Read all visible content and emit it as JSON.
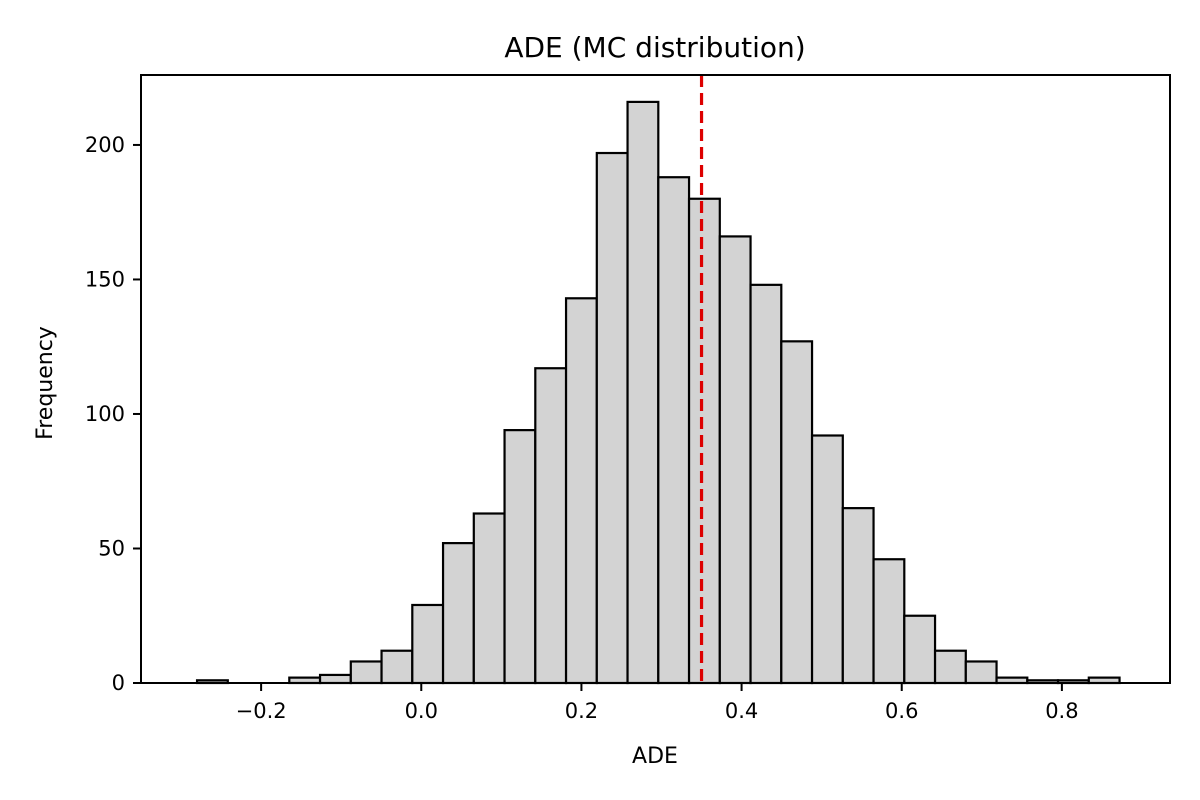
{
  "chart_data": {
    "type": "bar",
    "title": "ADE (MC distribution)",
    "xlabel": "ADE",
    "ylabel": "Frequency",
    "xlim": [
      -0.35,
      0.935
    ],
    "ylim": [
      0,
      226
    ],
    "xticks": [
      "−0.2",
      "0.0",
      "0.2",
      "0.4",
      "0.6",
      "0.8"
    ],
    "xtick_values": [
      -0.2,
      0.0,
      0.2,
      0.4,
      0.6,
      0.8
    ],
    "yticks": [
      "0",
      "50",
      "100",
      "150",
      "200"
    ],
    "ytick_values": [
      0,
      50,
      100,
      150,
      200
    ],
    "bin_start": -0.28,
    "bin_width": 0.0384,
    "counts": [
      1,
      0,
      0,
      2,
      3,
      8,
      12,
      29,
      52,
      63,
      94,
      117,
      143,
      197,
      216,
      188,
      180,
      166,
      148,
      127,
      92,
      65,
      46,
      25,
      12,
      8,
      2,
      1,
      1,
      2
    ],
    "reference_line": {
      "x": 0.35,
      "color": "#dd0000",
      "style": "dashed"
    },
    "bar_color": "#d3d3d3",
    "grid": false
  }
}
